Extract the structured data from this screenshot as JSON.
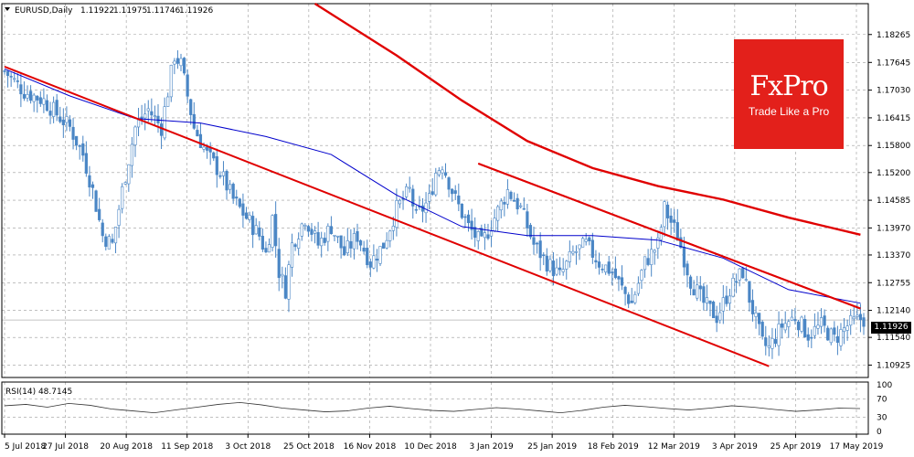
{
  "chart_data": [
    {
      "type": "candlestick",
      "title": "EURUSD,Daily",
      "ohlc": {
        "open": "1.11922",
        "high": "1.11975",
        "low": "1.11746",
        "close": "1.11926"
      },
      "current_price": "1.11926",
      "ylim": [
        1.1065,
        1.1895
      ],
      "y_ticks": [
        "1.18265",
        "1.17645",
        "1.17030",
        "1.16415",
        "1.15800",
        "1.15200",
        "1.14585",
        "1.13970",
        "1.13370",
        "1.12755",
        "1.12140",
        "1.11540",
        "1.10925"
      ],
      "x_ticks": [
        "5 Jul 2018",
        "27 Jul 2018",
        "20 Aug 2018",
        "11 Sep 2018",
        "3 Oct 2018",
        "25 Oct 2018",
        "16 Nov 2018",
        "10 Dec 2018",
        "3 Jan 2019",
        "25 Jan 2019",
        "18 Feb 2019",
        "12 Mar 2019",
        "3 Apr 2019",
        "25 Apr 2019",
        "17 May 2019"
      ],
      "grid": true,
      "approx_close_path": [
        [
          0,
          1.1745
        ],
        [
          6,
          1.17
        ],
        [
          12,
          1.168
        ],
        [
          16,
          1.165
        ],
        [
          20,
          1.162
        ],
        [
          24,
          1.156
        ],
        [
          27,
          1.148
        ],
        [
          30,
          1.138
        ],
        [
          33,
          1.136
        ],
        [
          36,
          1.148
        ],
        [
          40,
          1.162
        ],
        [
          44,
          1.166
        ],
        [
          48,
          1.162
        ],
        [
          50,
          1.17
        ],
        [
          52,
          1.178
        ],
        [
          54,
          1.176
        ],
        [
          58,
          1.162
        ],
        [
          62,
          1.156
        ],
        [
          66,
          1.152
        ],
        [
          70,
          1.146
        ],
        [
          74,
          1.142
        ],
        [
          78,
          1.138
        ],
        [
          80,
          1.134
        ],
        [
          82,
          1.142
        ],
        [
          84,
          1.13
        ],
        [
          86,
          1.126
        ],
        [
          88,
          1.136
        ],
        [
          92,
          1.142
        ],
        [
          96,
          1.136
        ],
        [
          100,
          1.14
        ],
        [
          104,
          1.134
        ],
        [
          108,
          1.138
        ],
        [
          112,
          1.132
        ],
        [
          116,
          1.136
        ],
        [
          120,
          1.144
        ],
        [
          124,
          1.148
        ],
        [
          126,
          1.142
        ],
        [
          130,
          1.146
        ],
        [
          132,
          1.152
        ],
        [
          134,
          1.154
        ],
        [
          138,
          1.146
        ],
        [
          142,
          1.14
        ],
        [
          146,
          1.136
        ],
        [
          150,
          1.142
        ],
        [
          154,
          1.148
        ],
        [
          158,
          1.144
        ],
        [
          162,
          1.136
        ],
        [
          166,
          1.132
        ],
        [
          170,
          1.129
        ],
        [
          174,
          1.134
        ],
        [
          178,
          1.136
        ],
        [
          182,
          1.132
        ],
        [
          186,
          1.13
        ],
        [
          190,
          1.125
        ],
        [
          192,
          1.123
        ],
        [
          196,
          1.132
        ],
        [
          200,
          1.136
        ],
        [
          202,
          1.144
        ],
        [
          206,
          1.138
        ],
        [
          210,
          1.128
        ],
        [
          214,
          1.123
        ],
        [
          218,
          1.12
        ],
        [
          222,
          1.126
        ],
        [
          226,
          1.13
        ],
        [
          228,
          1.124
        ],
        [
          232,
          1.114
        ],
        [
          234,
          1.113
        ],
        [
          238,
          1.118
        ],
        [
          242,
          1.12
        ],
        [
          246,
          1.116
        ],
        [
          250,
          1.118
        ],
        [
          254,
          1.115
        ],
        [
          258,
          1.118
        ],
        [
          262,
          1.1195
        ]
      ],
      "moving_averages": [
        {
          "color": "#0000cc",
          "points": [
            [
              0,
              1.175
            ],
            [
              20,
              1.169
            ],
            [
              40,
              1.164
            ],
            [
              60,
              1.163
            ],
            [
              80,
              1.16
            ],
            [
              100,
              1.156
            ],
            [
              120,
              1.147
            ],
            [
              140,
              1.14
            ],
            [
              160,
              1.138
            ],
            [
              180,
              1.138
            ],
            [
              200,
              1.137
            ],
            [
              220,
              1.133
            ],
            [
              240,
              1.126
            ],
            [
              262,
              1.123
            ]
          ]
        },
        {
          "color": "#e00000",
          "points": [
            [
              95,
              1.1895
            ],
            [
              120,
              1.178
            ],
            [
              140,
              1.168
            ],
            [
              160,
              1.159
            ],
            [
              180,
              1.153
            ],
            [
              200,
              1.149
            ],
            [
              220,
              1.146
            ],
            [
              240,
              1.142
            ],
            [
              262,
              1.1382
            ]
          ]
        }
      ],
      "trend_lines": [
        {
          "color": "#e00000",
          "from": [
            0,
            1.1755
          ],
          "to": [
            234,
            1.109
          ]
        },
        {
          "color": "#e00000",
          "from": [
            145,
            1.154
          ],
          "to": [
            262,
            1.1218
          ]
        }
      ]
    },
    {
      "type": "line",
      "title": "RSI(14) 48.7145",
      "ylim": [
        0,
        100
      ],
      "y_ticks": [
        "100",
        "70",
        "30",
        "0"
      ],
      "levels": [
        70,
        30
      ],
      "values": [
        55,
        58,
        52,
        60,
        56,
        48,
        44,
        40,
        46,
        52,
        58,
        62,
        57,
        50,
        46,
        42,
        44,
        50,
        54,
        49,
        45,
        43,
        47,
        51,
        48,
        44,
        40,
        45,
        52,
        56,
        53,
        49,
        46,
        50,
        55,
        52,
        47,
        43,
        46,
        50,
        49
      ]
    }
  ],
  "branding": {
    "brand": "FxPro",
    "tagline": "Trade Like a Pro"
  }
}
